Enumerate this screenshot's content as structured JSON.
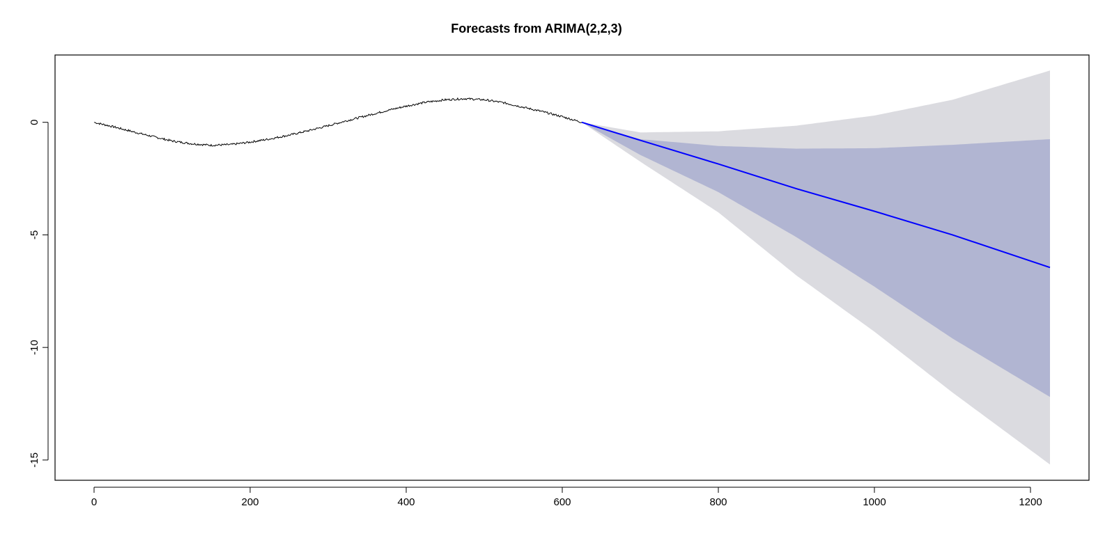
{
  "chart_data": {
    "type": "line",
    "title": "Forecasts from ARIMA(2,2,3)",
    "xlabel": "",
    "ylabel": "",
    "xlim": [
      -50,
      1275
    ],
    "ylim": [
      -15.9,
      2.99
    ],
    "x_ticks": [
      0,
      200,
      400,
      600,
      800,
      1000,
      1200
    ],
    "y_ticks": [
      0,
      -5,
      -10,
      -15
    ],
    "grid": false,
    "colors": {
      "history": "#000000",
      "forecast": "#0000ff",
      "band80": "#b1b5d2",
      "band95": "#dbdbe0",
      "frame": "#000000"
    },
    "history": {
      "x_start": 0,
      "x_end": 625,
      "points": [
        [
          0,
          0.0
        ],
        [
          25,
          -0.2
        ],
        [
          50,
          -0.42
        ],
        [
          75,
          -0.63
        ],
        [
          100,
          -0.83
        ],
        [
          125,
          -0.95
        ],
        [
          150,
          -1.02
        ],
        [
          175,
          -0.99
        ],
        [
          200,
          -0.88
        ],
        [
          225,
          -0.74
        ],
        [
          250,
          -0.57
        ],
        [
          275,
          -0.37
        ],
        [
          300,
          -0.15
        ],
        [
          325,
          0.08
        ],
        [
          350,
          0.3
        ],
        [
          375,
          0.52
        ],
        [
          400,
          0.72
        ],
        [
          425,
          0.89
        ],
        [
          450,
          1.0
        ],
        [
          475,
          1.05
        ],
        [
          500,
          1.0
        ],
        [
          525,
          0.87
        ],
        [
          550,
          0.67
        ],
        [
          575,
          0.47
        ],
        [
          600,
          0.25
        ],
        [
          625,
          0.0
        ]
      ]
    },
    "forecast": {
      "x": [
        625,
        700,
        800,
        900,
        1000,
        1100,
        1225
      ],
      "mean": [
        0.0,
        -0.8,
        -1.85,
        -2.95,
        -3.95,
        -5.0,
        -6.45
      ],
      "lo80": [
        0.0,
        -1.45,
        -3.1,
        -5.1,
        -7.3,
        -9.6,
        -12.2
      ],
      "hi80": [
        0.0,
        -0.75,
        -1.05,
        -1.17,
        -1.15,
        -1.0,
        -0.75
      ],
      "lo95": [
        0.0,
        -1.75,
        -4.0,
        -6.8,
        -9.3,
        -12.0,
        -15.2
      ],
      "hi95": [
        0.0,
        -0.45,
        -0.4,
        -0.15,
        0.3,
        1.0,
        2.3
      ]
    }
  }
}
